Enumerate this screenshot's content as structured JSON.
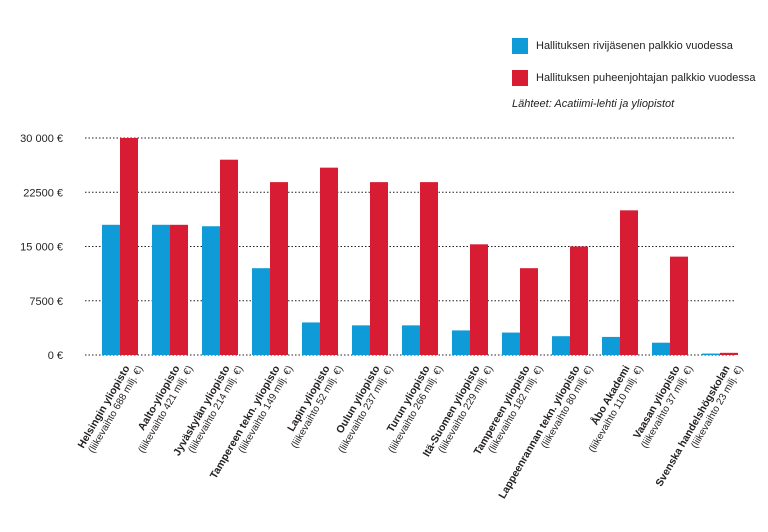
{
  "chart_data": {
    "type": "bar",
    "title": "",
    "xlabel": "",
    "ylabel": "",
    "ylim": [
      0,
      30000
    ],
    "y_ticks": [
      0,
      7500,
      15000,
      22500,
      30000
    ],
    "y_tick_labels": [
      "0 €",
      "7500 €",
      "15 000 €",
      "22500 €",
      "30 000 €"
    ],
    "grid": "dotted horizontal",
    "legend_position": "top-right",
    "source": "Lähteet: Acatiimi-lehti ja yliopistot",
    "categories": [
      {
        "name": "Helsingin yliopisto",
        "revenue": "(liikevaihto 688 milj. €)"
      },
      {
        "name": "Aalto-yliopisto",
        "revenue": "(liikevaihto 421 milj. €)"
      },
      {
        "name": "Jyväskylän yliopisto",
        "revenue": "(liikevaihto 214 milj. €)"
      },
      {
        "name": "Tampereen tekn. yliopisto",
        "revenue": "(liikevaihto 149 milj. €)"
      },
      {
        "name": "Lapin yliopisto",
        "revenue": "(liikevaihto 52 milj. €)"
      },
      {
        "name": "Oulun yliopisto",
        "revenue": "(liikevaihto 237 milj. €)"
      },
      {
        "name": "Turun yliopisto",
        "revenue": "(liikevaihto 266 milj. €)"
      },
      {
        "name": "Itä-Suomen yliopisto",
        "revenue": "(liikevaihto 229 milj. €)"
      },
      {
        "name": "Tampereen yliopisto",
        "revenue": "(liikevaihto 182 milj. €)"
      },
      {
        "name": "Lappeenrannan tekn. yliopisto",
        "revenue": "(liikevaihto 80 milj. €)"
      },
      {
        "name": "Åbo Akademi",
        "revenue": "(liikevaihto 110 milj. €)"
      },
      {
        "name": "Vaasan yliopisto",
        "revenue": "(liikevaihto 37 milj. €)"
      },
      {
        "name": "Svenska handelshögskolan",
        "revenue": "(liikevaihto 23 milj. €)"
      }
    ],
    "series": [
      {
        "name": "Hallituksen rivijäsenen palkkio vuodessa",
        "color": "#0f9bd7",
        "values": [
          18000,
          18000,
          17800,
          12000,
          4500,
          4100,
          4100,
          3400,
          3100,
          2600,
          2500,
          1700,
          200
        ]
      },
      {
        "name": "Hallituksen puheenjohtajan palkkio vuodessa",
        "color": "#d71c34",
        "values": [
          30000,
          18000,
          27000,
          23900,
          25900,
          23900,
          23900,
          15300,
          12000,
          15000,
          20000,
          13600,
          300
        ]
      }
    ]
  }
}
